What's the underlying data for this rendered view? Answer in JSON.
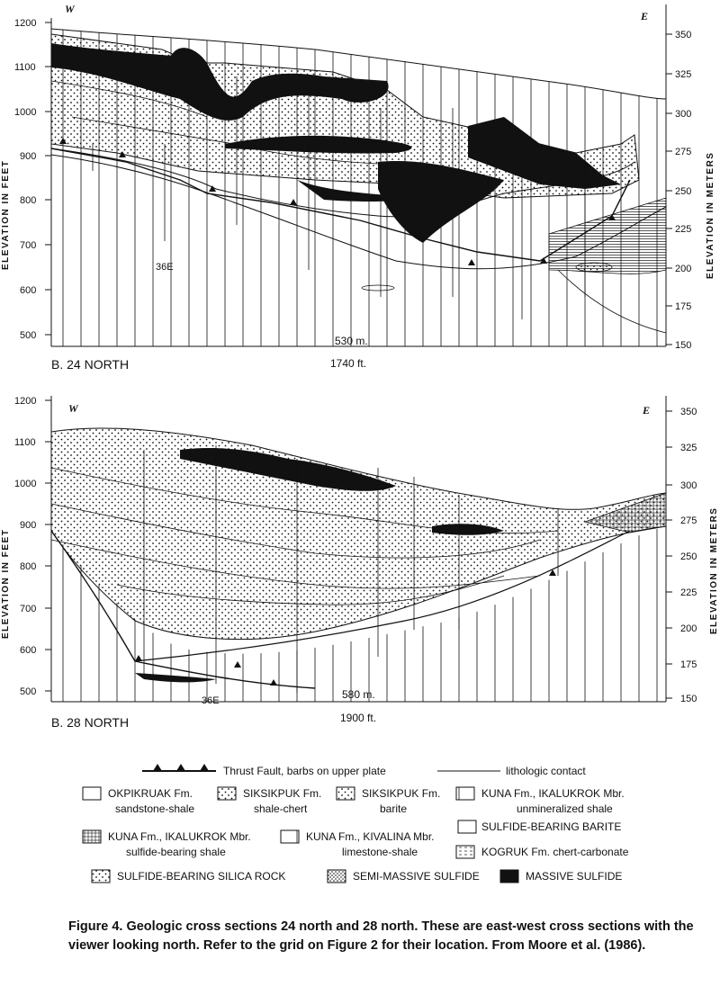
{
  "section_top": {
    "west_label": "W",
    "east_label": "E",
    "left_ticks": [
      "1200",
      "1100",
      "1000",
      "900",
      "800",
      "700",
      "600",
      "500"
    ],
    "right_ticks": [
      "350",
      "325",
      "300",
      "275",
      "250",
      "225",
      "200",
      "175",
      "150"
    ],
    "left_axis_label": "ELEVATION IN FEET",
    "right_axis_label": "ELEVATION IN METERS",
    "drillhole_label": "36E",
    "section_label": "B. 24 NORTH",
    "scale_m": "530 m.",
    "scale_ft": "1740 ft."
  },
  "section_bottom": {
    "west_label": "W",
    "east_label": "E",
    "left_ticks": [
      "1200",
      "1100",
      "1000",
      "900",
      "800",
      "700",
      "600",
      "500"
    ],
    "right_ticks": [
      "350",
      "325",
      "300",
      "275",
      "250",
      "225",
      "200",
      "175",
      "150"
    ],
    "left_axis_label": "ELEVATION IN FEET",
    "right_axis_label": "ELEVATION IN METERS",
    "drillhole_label": "36E",
    "section_label": "B. 28 NORTH",
    "scale_m": "580 m.",
    "scale_ft": "1900 ft."
  },
  "legend": {
    "thrust_fault": "Thrust Fault, barbs on upper plate",
    "lithologic_contact": "lithologic contact",
    "items": [
      {
        "line1": "OKPIKRUAK Fm.",
        "line2": "sandstone-shale"
      },
      {
        "line1": "SIKSIKPUK Fm.",
        "line2": "shale-chert"
      },
      {
        "line1": "SIKSIKPUK Fm.",
        "line2": "barite"
      },
      {
        "line1": "KUNA Fm., IKALUKROK Mbr.",
        "line2": "unmineralized shale"
      },
      {
        "line1": "KUNA Fm., IKALUKROK Mbr.",
        "line2": "sulfide-bearing shale"
      },
      {
        "line1": "KUNA Fm., KIVALINA Mbr.",
        "line2": "limestone-shale"
      },
      {
        "line1": "SULFIDE-BEARING BARITE",
        "line2": ""
      },
      {
        "line1": "KOGRUK Fm. chert-carbonate",
        "line2": ""
      },
      {
        "line1": "SULFIDE-BEARING SILICA ROCK",
        "line2": ""
      },
      {
        "line1": "SEMI-MASSIVE SULFIDE",
        "line2": ""
      },
      {
        "line1": "MASSIVE SULFIDE",
        "line2": ""
      }
    ]
  },
  "caption": {
    "label": "Figure 4.",
    "text": "Geologic cross sections 24 north and 28 north. These are east-west cross sections with the viewer looking north. Refer to the grid on Figure 2 for their location. From Moore et al. (1986)."
  }
}
